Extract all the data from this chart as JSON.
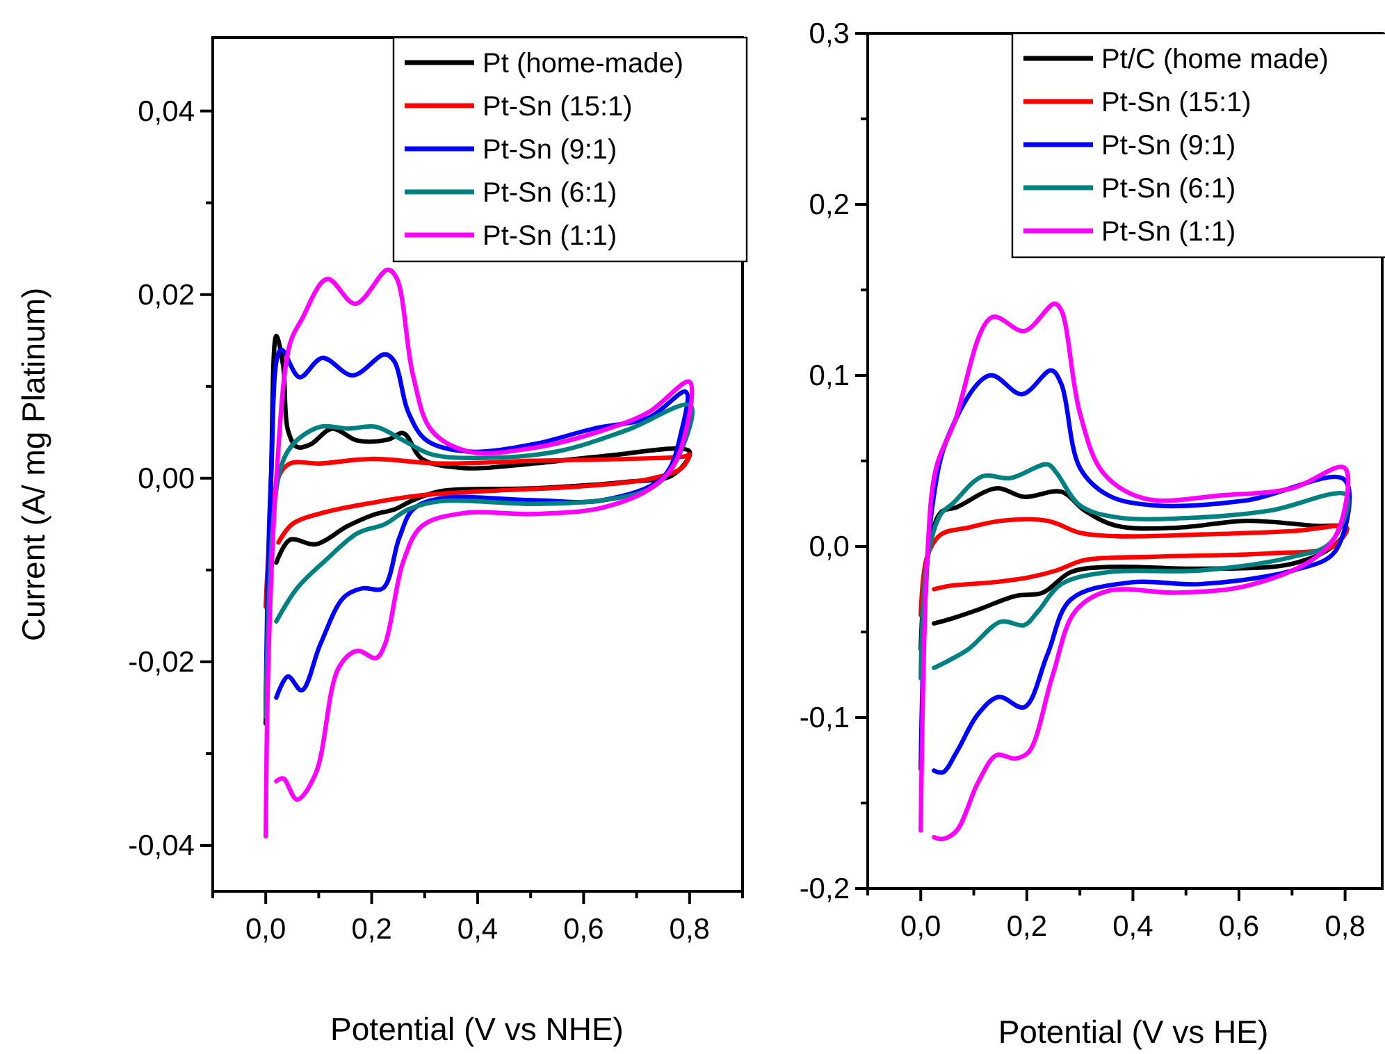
{
  "chart_data": [
    {
      "type": "line",
      "xlabel": "Potential (V vs NHE)",
      "ylabel": "Current (A/ mg Platinum)",
      "legend": "top right",
      "xlim": [
        -0.1,
        0.9
      ],
      "ylim": [
        -0.045,
        0.048
      ],
      "xticks": [
        {
          "value": -0.1,
          "label": null
        },
        {
          "value": 0,
          "label": "0,0"
        },
        {
          "value": 0.1,
          "label": null
        },
        {
          "value": 0.2,
          "label": "0,2"
        },
        {
          "value": 0.3,
          "label": null
        },
        {
          "value": 0.4,
          "label": "0,4"
        },
        {
          "value": 0.5,
          "label": null
        },
        {
          "value": 0.6,
          "label": "0,6"
        },
        {
          "value": 0.7,
          "label": null
        },
        {
          "value": 0.8,
          "label": "0,8"
        },
        {
          "value": 0.9,
          "label": null
        }
      ],
      "yticks": [
        {
          "value": -0.04,
          "label": "-0,04"
        },
        {
          "value": -0.03,
          "label": null
        },
        {
          "value": -0.02,
          "label": "-0,02"
        },
        {
          "value": -0.01,
          "label": null
        },
        {
          "value": 0,
          "label": "0,00"
        },
        {
          "value": 0.01,
          "label": null
        },
        {
          "value": 0.02,
          "label": "0,02"
        },
        {
          "value": 0.03,
          "label": null
        },
        {
          "value": 0.04,
          "label": "0,04"
        }
      ],
      "series": [
        {
          "name": "Pt (home-made)",
          "color": "#000000",
          "x": [
            0,
            0.01,
            0.02,
            0.033,
            0.042,
            0.059,
            0.085,
            0.125,
            0.173,
            0.23,
            0.26,
            0.295,
            0.374,
            0.505,
            0.636,
            0.8,
            0.767,
            0.68,
            0.505,
            0.33,
            0.278,
            0.243,
            0.208,
            0.155,
            0.094,
            0.046,
            0.02
          ],
          "values": [
            -0.0267,
            0.0,
            0.0155,
            0.0122,
            0.0052,
            0.0034,
            0.0037,
            0.0054,
            0.0041,
            0.0042,
            0.0049,
            0.0021,
            0.0011,
            0.0016,
            0.0024,
            0.0029,
            0.0003,
            -0.0004,
            -0.0011,
            -0.0014,
            -0.0024,
            -0.0034,
            -0.0039,
            -0.0052,
            -0.0072,
            -0.0067,
            -0.0092
          ]
        },
        {
          "name": "Pt-Sn (15:1)",
          "color": "#ff0000",
          "x": [
            0,
            0.024,
            0.046,
            0.103,
            0.199,
            0.33,
            0.505,
            0.68,
            0.793,
            0.8,
            0.785,
            0.723,
            0.592,
            0.418,
            0.287,
            0.199,
            0.112,
            0.05,
            0.024
          ],
          "values": [
            -0.014,
            0.0001,
            0.0016,
            0.0016,
            0.0021,
            0.0016,
            0.0019,
            0.0021,
            0.0024,
            0.0026,
            0.0011,
            -0.0001,
            -0.0009,
            -0.0014,
            -0.0019,
            -0.0027,
            -0.0037,
            -0.005,
            -0.007
          ]
        },
        {
          "name": "Pt-Sn (9:1)",
          "color": "#0000ff",
          "x": [
            0,
            0.01,
            0.029,
            0.064,
            0.107,
            0.164,
            0.225,
            0.243,
            0.269,
            0.304,
            0.383,
            0.505,
            0.619,
            0.723,
            0.793,
            0.785,
            0.75,
            0.636,
            0.505,
            0.33,
            0.278,
            0.252,
            0.221,
            0.182,
            0.147,
            0.103,
            0.068,
            0.042,
            0.02
          ],
          "values": [
            -0.025,
            0.0,
            0.014,
            0.011,
            0.0131,
            0.0112,
            0.0135,
            0.0127,
            0.0072,
            0.0041,
            0.0029,
            0.0037,
            0.0054,
            0.0066,
            0.0094,
            0.0052,
            0.0001,
            -0.0024,
            -0.0024,
            -0.0022,
            -0.0034,
            -0.0065,
            -0.012,
            -0.012,
            -0.013,
            -0.0181,
            -0.0231,
            -0.0216,
            -0.0239
          ]
        },
        {
          "name": "Pt-Sn (6:1)",
          "color": "#008080",
          "x": [
            0,
            0.024,
            0.05,
            0.103,
            0.155,
            0.208,
            0.26,
            0.313,
            0.4,
            0.549,
            0.68,
            0.802,
            0.767,
            0.723,
            0.636,
            0.505,
            0.33,
            0.269,
            0.225,
            0.173,
            0.112,
            0.059,
            0.02
          ],
          "values": [
            -0.026,
            0.0001,
            0.0036,
            0.0056,
            0.0054,
            0.0056,
            0.0041,
            0.0026,
            0.0022,
            0.0029,
            0.0052,
            0.0079,
            0.0011,
            -0.0012,
            -0.0024,
            -0.0028,
            -0.0025,
            -0.0034,
            -0.005,
            -0.006,
            -0.009,
            -0.012,
            -0.0156
          ]
        },
        {
          "name": "Pt-Sn (1:1)",
          "color": "#ff00ff",
          "x": [
            0,
            0.005,
            0.02,
            0.046,
            0.068,
            0.116,
            0.169,
            0.23,
            0.247,
            0.278,
            0.313,
            0.383,
            0.505,
            0.636,
            0.723,
            0.8,
            0.776,
            0.732,
            0.636,
            0.505,
            0.374,
            0.295,
            0.26,
            0.225,
            0.208,
            0.173,
            0.138,
            0.094,
            0.059,
            0.033,
            0.02
          ],
          "values": [
            -0.039,
            -0.02,
            0.0,
            0.0147,
            0.0173,
            0.0217,
            0.019,
            0.0227,
            0.0218,
            0.0112,
            0.0052,
            0.0029,
            0.0033,
            0.0052,
            0.0072,
            0.0105,
            0.0021,
            -0.0009,
            -0.0032,
            -0.0039,
            -0.0038,
            -0.0052,
            -0.009,
            -0.0181,
            -0.0196,
            -0.0188,
            -0.0206,
            -0.0322,
            -0.035,
            -0.0327,
            -0.033
          ]
        }
      ]
    },
    {
      "type": "line",
      "xlabel": "Potential (V vs HE)",
      "legend": "top right",
      "xlim": [
        -0.1,
        0.87
      ],
      "ylim": [
        -0.2,
        0.3
      ],
      "xticks": [
        {
          "value": -0.1,
          "label": null
        },
        {
          "value": 0,
          "label": "0,0"
        },
        {
          "value": 0.1,
          "label": null
        },
        {
          "value": 0.2,
          "label": "0,2"
        },
        {
          "value": 0.3,
          "label": null
        },
        {
          "value": 0.4,
          "label": "0,4"
        },
        {
          "value": 0.5,
          "label": null
        },
        {
          "value": 0.6,
          "label": "0,6"
        },
        {
          "value": 0.7,
          "label": null
        },
        {
          "value": 0.8,
          "label": "0,8"
        }
      ],
      "yticks": [
        {
          "value": -0.2,
          "label": "-0,2"
        },
        {
          "value": -0.15,
          "label": null
        },
        {
          "value": -0.1,
          "label": "-0,1"
        },
        {
          "value": -0.05,
          "label": null
        },
        {
          "value": 0,
          "label": "0,0"
        },
        {
          "value": 0.05,
          "label": null
        },
        {
          "value": 0.1,
          "label": "0,1"
        },
        {
          "value": 0.15,
          "label": null
        },
        {
          "value": 0.2,
          "label": "0,2"
        },
        {
          "value": 0.25,
          "label": null
        },
        {
          "value": 0.3,
          "label": "0,3"
        }
      ],
      "series": [
        {
          "name": "Pt/C (home made)",
          "color": "#000000",
          "x": [
            0,
            0.012,
            0.038,
            0.068,
            0.143,
            0.195,
            0.265,
            0.309,
            0.37,
            0.484,
            0.615,
            0.746,
            0.803,
            0.781,
            0.702,
            0.527,
            0.353,
            0.283,
            0.23,
            0.178,
            0.108,
            0.06,
            0.025
          ],
          "values": [
            -0.06,
            -0.008,
            0.02,
            0.023,
            0.034,
            0.029,
            0.032,
            0.021,
            0.012,
            0.011,
            0.015,
            0.012,
            0.011,
            0.001,
            -0.01,
            -0.013,
            -0.012,
            -0.015,
            -0.027,
            -0.029,
            -0.037,
            -0.042,
            -0.045
          ]
        },
        {
          "name": "Pt-Sn (15:1)",
          "color": "#ff0000",
          "x": [
            0,
            0.012,
            0.038,
            0.09,
            0.151,
            0.239,
            0.3,
            0.37,
            0.527,
            0.702,
            0.803,
            0.777,
            0.659,
            0.44,
            0.309,
            0.256,
            0.204,
            0.134,
            0.055,
            0.025
          ],
          "values": [
            -0.04,
            -0.006,
            0.007,
            0.011,
            0.015,
            0.015,
            0.008,
            0.006,
            0.007,
            0.009,
            0.011,
            0.0,
            -0.004,
            -0.006,
            -0.008,
            -0.014,
            -0.018,
            -0.021,
            -0.023,
            -0.025
          ]
        },
        {
          "name": "Pt-Sn (9:1)",
          "color": "#0000ff",
          "x": [
            0,
            0.02,
            0.055,
            0.13,
            0.191,
            0.246,
            0.265,
            0.3,
            0.353,
            0.44,
            0.615,
            0.799,
            0.781,
            0.702,
            0.527,
            0.396,
            0.283,
            0.239,
            0.195,
            0.147,
            0.108,
            0.068,
            0.042,
            0.025
          ],
          "values": [
            -0.13,
            0.019,
            0.067,
            0.1,
            0.089,
            0.103,
            0.095,
            0.046,
            0.03,
            0.024,
            0.027,
            0.039,
            -0.003,
            -0.014,
            -0.022,
            -0.021,
            -0.031,
            -0.063,
            -0.094,
            -0.088,
            -0.098,
            -0.12,
            -0.132,
            -0.131
          ]
        },
        {
          "name": "Pt-Sn (6:1)",
          "color": "#008080",
          "x": [
            0,
            0.012,
            0.038,
            0.06,
            0.116,
            0.169,
            0.239,
            0.256,
            0.3,
            0.37,
            0.527,
            0.659,
            0.803,
            0.772,
            0.702,
            0.527,
            0.353,
            0.265,
            0.221,
            0.195,
            0.151,
            0.09,
            0.051,
            0.025
          ],
          "values": [
            -0.077,
            -0.008,
            0.019,
            0.025,
            0.041,
            0.04,
            0.048,
            0.043,
            0.024,
            0.017,
            0.017,
            0.021,
            0.03,
            0.002,
            -0.006,
            -0.014,
            -0.015,
            -0.022,
            -0.038,
            -0.046,
            -0.044,
            -0.06,
            -0.067,
            -0.071
          ]
        },
        {
          "name": "Pt-Sn (1:1)",
          "color": "#ff00ff",
          "x": [
            0,
            0.012,
            0.029,
            0.064,
            0.134,
            0.195,
            0.252,
            0.265,
            0.3,
            0.344,
            0.422,
            0.571,
            0.7,
            0.799,
            0.785,
            0.737,
            0.615,
            0.484,
            0.353,
            0.291,
            0.248,
            0.204,
            0.178,
            0.143,
            0.108,
            0.068,
            0.042,
            0.025
          ],
          "values": [
            -0.166,
            -0.008,
            0.046,
            0.073,
            0.134,
            0.126,
            0.142,
            0.138,
            0.078,
            0.043,
            0.028,
            0.03,
            0.034,
            0.046,
            0.008,
            -0.008,
            -0.023,
            -0.027,
            -0.026,
            -0.038,
            -0.076,
            -0.12,
            -0.124,
            -0.122,
            -0.138,
            -0.166,
            -0.171,
            -0.17
          ]
        }
      ]
    }
  ]
}
